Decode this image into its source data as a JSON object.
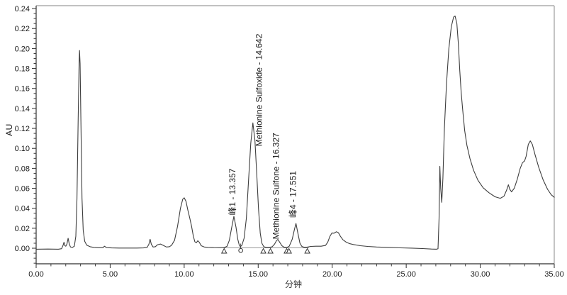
{
  "figure": {
    "y_axis": {
      "title": "AU",
      "major_tick_values": [
        0,
        0.02,
        0.04,
        0.06,
        0.08,
        0.1,
        0.12,
        0.14,
        0.16,
        0.18,
        0.2,
        0.22,
        0.24
      ],
      "major_tick_labels": [
        "0.00",
        "0.02",
        "0.04",
        "0.06",
        "0.08",
        "0.10",
        "0.12",
        "0.14",
        "0.16",
        "0.18",
        "0.20",
        "0.22",
        "0.24"
      ],
      "minor_step": 0.005
    },
    "x_axis": {
      "title": "分钟",
      "major_tick_values": [
        0,
        5,
        10,
        15,
        20,
        25,
        30,
        35
      ],
      "major_tick_labels": [
        "0.00",
        "5.00",
        "10.00",
        "15.00",
        "20.00",
        "25.00",
        "30.00",
        "35.00"
      ],
      "minor_step": 1
    },
    "colors": {
      "trace": "#3d3d3d",
      "axis": "#2f2f2f",
      "frame": "#9c9c9c",
      "text": "#1a1a1a",
      "marker": "#333333",
      "integration_line": "#777777"
    }
  },
  "chart_data": {
    "type": "line",
    "title": "",
    "xlabel": "分钟",
    "ylabel": "AU",
    "xlim": [
      0,
      35
    ],
    "ylim": [
      -0.0156,
      0.2429
    ],
    "grid": false,
    "legend": "none",
    "series": [
      {
        "name": "chromatogram",
        "points": [
          [
            0,
            -0.001
          ],
          [
            0.8,
            -0.0008
          ],
          [
            1.5,
            -0.001
          ],
          [
            1.72,
            -0.0005
          ],
          [
            1.82,
            0.003
          ],
          [
            1.88,
            0.006
          ],
          [
            1.94,
            0.0025
          ],
          [
            2.0,
            0.002
          ],
          [
            2.08,
            0.004
          ],
          [
            2.16,
            0.01
          ],
          [
            2.24,
            0.004
          ],
          [
            2.32,
            0.0012
          ],
          [
            2.45,
            0.0008
          ],
          [
            2.58,
            0.002
          ],
          [
            2.68,
            0.012
          ],
          [
            2.76,
            0.05
          ],
          [
            2.84,
            0.13
          ],
          [
            2.9,
            0.185
          ],
          [
            2.93,
            0.198
          ],
          [
            2.97,
            0.185
          ],
          [
            3.03,
            0.12
          ],
          [
            3.1,
            0.05
          ],
          [
            3.18,
            0.018
          ],
          [
            3.28,
            0.007
          ],
          [
            3.42,
            0.003
          ],
          [
            3.65,
            0.0015
          ],
          [
            3.9,
            0.0008
          ],
          [
            4.2,
            0.0005
          ],
          [
            4.5,
            0.0005
          ],
          [
            4.62,
            0.002
          ],
          [
            4.75,
            0.0006
          ],
          [
            5.1,
            0.0003
          ],
          [
            5.6,
            0.0002
          ],
          [
            6.2,
            0.0002
          ],
          [
            6.8,
            0.0002
          ],
          [
            7.25,
            0.0003
          ],
          [
            7.5,
            0.0008
          ],
          [
            7.62,
            0.004
          ],
          [
            7.7,
            0.009
          ],
          [
            7.78,
            0.004
          ],
          [
            7.9,
            0.0012
          ],
          [
            8.05,
            0.0015
          ],
          [
            8.2,
            0.0035
          ],
          [
            8.4,
            0.0042
          ],
          [
            8.6,
            0.0028
          ],
          [
            8.8,
            0.0012
          ],
          [
            9.0,
            0.0015
          ],
          [
            9.15,
            0.003
          ],
          [
            9.35,
            0.008
          ],
          [
            9.55,
            0.022
          ],
          [
            9.75,
            0.04
          ],
          [
            9.9,
            0.049
          ],
          [
            10.0,
            0.0505
          ],
          [
            10.12,
            0.047
          ],
          [
            10.25,
            0.038
          ],
          [
            10.38,
            0.03
          ],
          [
            10.5,
            0.022
          ],
          [
            10.62,
            0.012
          ],
          [
            10.72,
            0.0065
          ],
          [
            10.82,
            0.0055
          ],
          [
            10.92,
            0.0075
          ],
          [
            11.02,
            0.006
          ],
          [
            11.15,
            0.0025
          ],
          [
            11.35,
            0.0012
          ],
          [
            11.6,
            0.0008
          ],
          [
            12.0,
            0.0006
          ],
          [
            12.4,
            0.0005
          ],
          [
            12.7,
            0.0006
          ],
          [
            12.9,
            0.002
          ],
          [
            13.05,
            0.008
          ],
          [
            13.2,
            0.02
          ],
          [
            13.357,
            0.032
          ],
          [
            13.5,
            0.021
          ],
          [
            13.62,
            0.009
          ],
          [
            13.72,
            0.003
          ],
          [
            13.8,
            0.0015
          ],
          [
            13.9,
            0.003
          ],
          [
            14.05,
            0.01
          ],
          [
            14.2,
            0.03
          ],
          [
            14.35,
            0.068
          ],
          [
            14.5,
            0.105
          ],
          [
            14.642,
            0.1255
          ],
          [
            14.78,
            0.108
          ],
          [
            14.9,
            0.075
          ],
          [
            15.02,
            0.04
          ],
          [
            15.14,
            0.015
          ],
          [
            15.25,
            0.005
          ],
          [
            15.38,
            0.0015
          ],
          [
            15.55,
            0.0008
          ],
          [
            15.75,
            0.0008
          ],
          [
            15.95,
            0.0015
          ],
          [
            16.1,
            0.004
          ],
          [
            16.23,
            0.0075
          ],
          [
            16.327,
            0.0088
          ],
          [
            16.45,
            0.006
          ],
          [
            16.6,
            0.0025
          ],
          [
            16.75,
            0.001
          ],
          [
            16.95,
            0.0008
          ],
          [
            17.1,
            0.002
          ],
          [
            17.3,
            0.009
          ],
          [
            17.45,
            0.019
          ],
          [
            17.551,
            0.0248
          ],
          [
            17.68,
            0.015
          ],
          [
            17.82,
            0.005
          ],
          [
            17.95,
            0.0018
          ],
          [
            18.1,
            0.001
          ],
          [
            18.3,
            0.001
          ],
          [
            18.55,
            0.0018
          ],
          [
            18.9,
            0.002
          ],
          [
            19.25,
            0.002
          ],
          [
            19.55,
            0.0028
          ],
          [
            19.7,
            0.006
          ],
          [
            19.85,
            0.012
          ],
          [
            19.98,
            0.0152
          ],
          [
            20.12,
            0.015
          ],
          [
            20.28,
            0.0165
          ],
          [
            20.42,
            0.0155
          ],
          [
            20.55,
            0.012
          ],
          [
            20.72,
            0.0085
          ],
          [
            20.95,
            0.006
          ],
          [
            21.2,
            0.0045
          ],
          [
            21.5,
            0.0035
          ],
          [
            21.9,
            0.0025
          ],
          [
            22.4,
            0.0018
          ],
          [
            23.0,
            0.0012
          ],
          [
            23.8,
            0.0008
          ],
          [
            24.6,
            0.0004
          ],
          [
            25.4,
            0.0001
          ],
          [
            26.1,
            -0.0003
          ],
          [
            26.7,
            -0.0008
          ],
          [
            27.05,
            -0.001
          ],
          [
            27.15,
            -0.0005
          ],
          [
            27.22,
            0.03
          ],
          [
            27.27,
            0.082
          ],
          [
            27.33,
            0.06
          ],
          [
            27.4,
            0.046
          ],
          [
            27.48,
            0.07
          ],
          [
            27.58,
            0.12
          ],
          [
            27.72,
            0.165
          ],
          [
            27.88,
            0.2
          ],
          [
            28.05,
            0.222
          ],
          [
            28.2,
            0.2315
          ],
          [
            28.3,
            0.2325
          ],
          [
            28.42,
            0.225
          ],
          [
            28.52,
            0.205
          ],
          [
            28.62,
            0.178
          ],
          [
            28.72,
            0.155
          ],
          [
            28.82,
            0.138
          ],
          [
            28.95,
            0.118
          ],
          [
            29.1,
            0.103
          ],
          [
            29.3,
            0.09
          ],
          [
            29.55,
            0.078
          ],
          [
            29.85,
            0.068
          ],
          [
            30.2,
            0.0605
          ],
          [
            30.6,
            0.0555
          ],
          [
            31.0,
            0.0515
          ],
          [
            31.35,
            0.05
          ],
          [
            31.6,
            0.052
          ],
          [
            31.78,
            0.058
          ],
          [
            31.9,
            0.0635
          ],
          [
            32.0,
            0.059
          ],
          [
            32.12,
            0.0565
          ],
          [
            32.3,
            0.06
          ],
          [
            32.5,
            0.069
          ],
          [
            32.7,
            0.08
          ],
          [
            32.85,
            0.0855
          ],
          [
            33.0,
            0.0875
          ],
          [
            33.1,
            0.092
          ],
          [
            33.25,
            0.104
          ],
          [
            33.38,
            0.1075
          ],
          [
            33.52,
            0.104
          ],
          [
            33.7,
            0.094
          ],
          [
            33.95,
            0.081
          ],
          [
            34.25,
            0.0685
          ],
          [
            34.55,
            0.059
          ],
          [
            34.8,
            0.0535
          ],
          [
            35.0,
            0.051
          ]
        ]
      }
    ],
    "peak_annotations": [
      {
        "text": "峰1 - 13.357",
        "retention_time": 13.357,
        "apex_au": 0.032,
        "label_t": 13.29,
        "label_base_au": 0.033
      },
      {
        "text": "Methionine Sulfoxide - 14.642",
        "retention_time": 14.642,
        "apex_au": 0.1255,
        "label_t": 15.08,
        "label_base_au": 0.102
      },
      {
        "text": "Methionine Sulfone - 16.327",
        "retention_time": 16.327,
        "apex_au": 0.0088,
        "label_t": 16.23,
        "label_base_au": 0.009
      },
      {
        "text": "峰4 - 17.551",
        "retention_time": 17.551,
        "apex_au": 0.0248,
        "label_t": 17.38,
        "label_base_au": 0.0305
      }
    ],
    "integration_markers": [
      {
        "shape": "triangle",
        "t": 12.7
      },
      {
        "shape": "circle",
        "t": 13.82
      },
      {
        "shape": "triangle",
        "t": 15.35
      },
      {
        "shape": "triangle",
        "t": 15.83
      },
      {
        "shape": "double-triangle",
        "t": 17.0
      },
      {
        "shape": "triangle",
        "t": 18.32
      }
    ],
    "integration_baseline": {
      "from_t": 12.62,
      "to_t": 18.42,
      "au": 0.0003
    }
  }
}
